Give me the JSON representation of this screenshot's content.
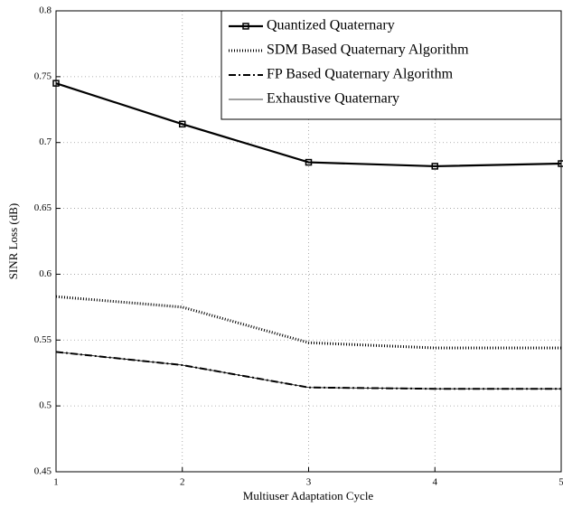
{
  "chart_data": {
    "type": "line",
    "xlabel": "Multiuser Adaptation Cycle",
    "ylabel": "SINR Loss (dB)",
    "x": [
      1,
      2,
      3,
      4,
      5
    ],
    "series": [
      {
        "name": "Quantized Quaternary",
        "color": "#000000",
        "style": "solid-square",
        "values": [
          0.745,
          0.714,
          0.685,
          0.682,
          0.684
        ]
      },
      {
        "name": "SDM Based Quaternary Algorithm",
        "color": "#000000",
        "style": "dotted",
        "values": [
          0.583,
          0.575,
          0.548,
          0.544,
          0.544
        ]
      },
      {
        "name": "FP Based Quaternary Algorithm",
        "color": "#000000",
        "style": "dashdot",
        "values": [
          0.541,
          0.531,
          0.514,
          0.513,
          0.513
        ]
      },
      {
        "name": "Exhaustive Quaternary",
        "color": "#000000",
        "style": "thin",
        "values": [
          0.541,
          0.531,
          0.514,
          0.513,
          0.513
        ]
      }
    ],
    "xlim": [
      1,
      5
    ],
    "xticks": [
      1,
      2,
      3,
      4,
      5
    ],
    "ylim": [
      0.45,
      0.8
    ],
    "yticks": [
      0.45,
      0.5,
      0.55,
      0.6,
      0.65,
      0.7,
      0.75,
      0.8
    ],
    "grid": true,
    "legend": "upper right"
  }
}
